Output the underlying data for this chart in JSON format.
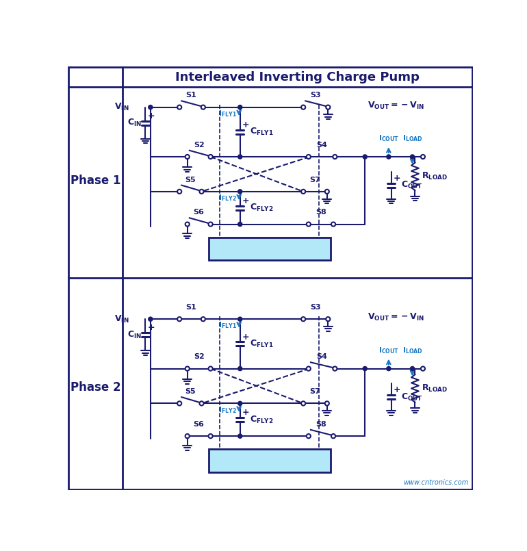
{
  "title": "Interleaved Inverting Charge Pump",
  "phase1_label": "Phase 1",
  "phase2_label": "Phase 2",
  "bg_color": "#ffffff",
  "border_color": "#1a1a6e",
  "blue_color": "#1a78c2",
  "dark_color": "#1a1a6e",
  "osc_fill": "#b3e8f8",
  "figsize": [
    7.7,
    8.05
  ],
  "dpi": 100
}
